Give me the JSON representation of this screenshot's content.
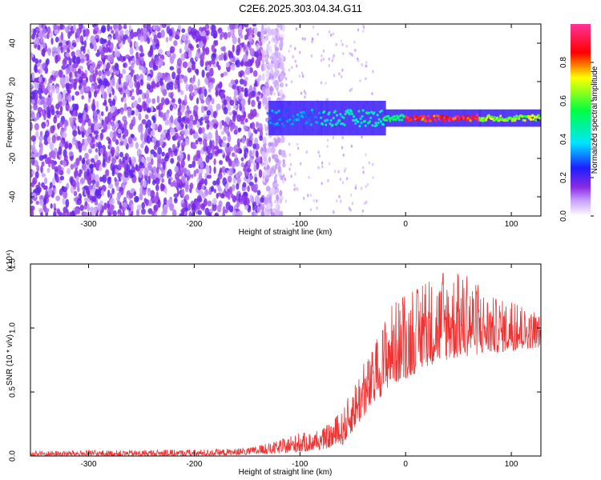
{
  "title": "C2E6.2025.303.04.34.G11",
  "chart_data": [
    {
      "type": "heatmap",
      "xlabel": "Height of straight line (km)",
      "ylabel": "Frequency (Hz)",
      "xlim": [
        -355,
        128
      ],
      "ylim": [
        -50,
        50
      ],
      "xticks": [
        -300,
        -200,
        -100,
        0,
        100
      ],
      "yticks": [
        -40,
        -20,
        0,
        20,
        40
      ],
      "colorbar": {
        "label": "Normalized spectral amplitude",
        "range": [
          0,
          1
        ],
        "ticks": [
          "0.0",
          "0.2",
          "0.4",
          "0.6",
          "0.8"
        ],
        "colors": [
          "#ffffff",
          "#8a2be2",
          "#1e1eff",
          "#00e5ff",
          "#00ff40",
          "#ffff00",
          "#ff0000",
          "#ff3399"
        ]
      },
      "ridge": {
        "note": "narrow high-amplitude band near 0 Hz, strongest between 0 and 70 km",
        "center_hz": 1,
        "segments": [
          {
            "x_from": -130,
            "x_to": -80,
            "amplitude": 0.35
          },
          {
            "x_from": -80,
            "x_to": -20,
            "amplitude": 0.45
          },
          {
            "x_from": -20,
            "x_to": 0,
            "amplitude": 0.55
          },
          {
            "x_from": 0,
            "x_to": 70,
            "amplitude": 0.95
          },
          {
            "x_from": 70,
            "x_to": 128,
            "amplitude": 0.7
          }
        ]
      },
      "noise_region": {
        "x_from": -355,
        "x_to": -135,
        "amplitude": 0.15
      }
    },
    {
      "type": "line",
      "xlabel": "Height of straight line (km)",
      "ylabel": "SNR (10 * v/v)",
      "y_multiplier": "(x10⁴)",
      "xlim": [
        -355,
        128
      ],
      "ylim": [
        0,
        1.5
      ],
      "xticks": [
        -300,
        -200,
        -100,
        0,
        100
      ],
      "yticks": [
        "0.0",
        "0.5",
        "1.0",
        "1.5"
      ],
      "color": "#ee3333",
      "envelope": {
        "x": [
          -355,
          -200,
          -150,
          -120,
          -100,
          -80,
          -60,
          -45,
          -30,
          -15,
          0,
          20,
          40,
          60,
          80,
          100,
          128
        ],
        "low": [
          0.0,
          0.0,
          0.01,
          0.02,
          0.03,
          0.05,
          0.08,
          0.25,
          0.4,
          0.55,
          0.6,
          0.7,
          0.75,
          0.78,
          0.8,
          0.82,
          0.85
        ],
        "high": [
          0.04,
          0.05,
          0.06,
          0.12,
          0.18,
          0.2,
          0.35,
          0.65,
          0.85,
          1.2,
          1.25,
          1.35,
          1.45,
          1.4,
          1.25,
          1.2,
          1.1
        ]
      }
    }
  ]
}
